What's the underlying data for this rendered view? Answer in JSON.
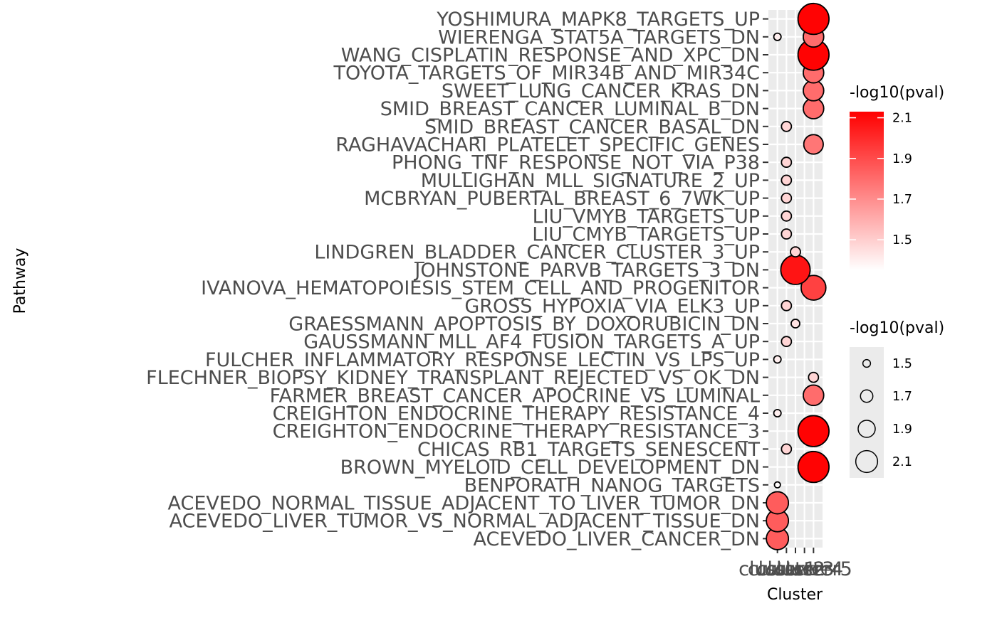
{
  "chart_data": {
    "type": "scatter",
    "xlabel": "Cluster",
    "ylabel": "Pathway",
    "categories_x": [
      "cluster1",
      "cluster2",
      "cluster3",
      "cluster4",
      "cluster5"
    ],
    "categories_y": [
      "ACEVEDO_LIVER_CANCER_DN",
      "ACEVEDO_LIVER_TUMOR_VS_NORMAL_ADJACENT_TISSUE_DN",
      "ACEVEDO_NORMAL_TISSUE_ADJACENT_TO_LIVER_TUMOR_DN",
      "BENPORATH_NANOG_TARGETS",
      "BROWN_MYELOID_CELL_DEVELOPMENT_DN",
      "CHICAS_RB1_TARGETS_SENESCENT",
      "CREIGHTON_ENDOCRINE_THERAPY_RESISTANCE_3",
      "CREIGHTON_ENDOCRINE_THERAPY_RESISTANCE_4",
      "FARMER_BREAST_CANCER_APOCRINE_VS_LUMINAL",
      "FLECHNER_BIOPSY_KIDNEY_TRANSPLANT_REJECTED_VS_OK_DN",
      "FULCHER_INFLAMMATORY_RESPONSE_LECTIN_VS_LPS_UP",
      "GAUSSMANN_MLL_AF4_FUSION_TARGETS_A_UP",
      "GRAESSMANN_APOPTOSIS_BY_DOXORUBICIN_DN",
      "GROSS_HYPOXIA_VIA_ELK3_UP",
      "IVANOVA_HEMATOPOIESIS_STEM_CELL_AND_PROGENITOR",
      "JOHNSTONE_PARVB_TARGETS_3_DN",
      "LINDGREN_BLADDER_CANCER_CLUSTER_3_UP",
      "LIU_CMYB_TARGETS_UP",
      "LIU_VMYB_TARGETS_UP",
      "MCBRYAN_PUBERTAL_BREAST_6_7WK_UP",
      "MULLIGHAN_MLL_SIGNATURE_2_UP",
      "PHONG_TNF_RESPONSE_NOT_VIA_P38",
      "RAGHAVACHARI_PLATELET_SPECIFIC_GENES",
      "SMID_BREAST_CANCER_BASAL_DN",
      "SMID_BREAST_CANCER_LUMINAL_B_DN",
      "SWEET_LUNG_CANCER_KRAS_DN",
      "TOYOTA_TARGETS_OF_MIR34B_AND_MIR34C",
      "WANG_CISPLATIN_RESPONSE_AND_XPC_DN",
      "WIERENGA_STAT5A_TARGETS_DN",
      "YOSHIMURA_MAPK8_TARGETS_UP"
    ],
    "points": [
      {
        "pathway": "ACEVEDO_LIVER_CANCER_DN",
        "cluster": "cluster1",
        "value": 1.85
      },
      {
        "pathway": "ACEVEDO_LIVER_TUMOR_VS_NORMAL_ADJACENT_TISSUE_DN",
        "cluster": "cluster1",
        "value": 1.85
      },
      {
        "pathway": "ACEVEDO_NORMAL_TISSUE_ADJACENT_TO_LIVER_TUMOR_DN",
        "cluster": "cluster1",
        "value": 1.85
      },
      {
        "pathway": "BENPORATH_NANOG_TARGETS",
        "cluster": "cluster1",
        "value": 1.36
      },
      {
        "pathway": "BROWN_MYELOID_CELL_DEVELOPMENT_DN",
        "cluster": "cluster5",
        "value": 2.12
      },
      {
        "pathway": "CHICAS_RB1_TARGETS_SENESCENT",
        "cluster": "cluster2",
        "value": 1.48
      },
      {
        "pathway": "CREIGHTON_ENDOCRINE_THERAPY_RESISTANCE_3",
        "cluster": "cluster5",
        "value": 2.12
      },
      {
        "pathway": "CREIGHTON_ENDOCRINE_THERAPY_RESISTANCE_4",
        "cluster": "cluster1",
        "value": 1.4
      },
      {
        "pathway": "FARMER_BREAST_CANCER_APOCRINE_VS_LUMINAL",
        "cluster": "cluster5",
        "value": 1.8
      },
      {
        "pathway": "FLECHNER_BIOPSY_KIDNEY_TRANSPLANT_REJECTED_VS_OK_DN",
        "cluster": "cluster5",
        "value": 1.48
      },
      {
        "pathway": "FULCHER_INFLAMMATORY_RESPONSE_LECTIN_VS_LPS_UP",
        "cluster": "cluster1",
        "value": 1.4
      },
      {
        "pathway": "GAUSSMANN_MLL_AF4_FUSION_TARGETS_A_UP",
        "cluster": "cluster2",
        "value": 1.48
      },
      {
        "pathway": "GRAESSMANN_APOPTOSIS_BY_DOXORUBICIN_DN",
        "cluster": "cluster3",
        "value": 1.44
      },
      {
        "pathway": "GROSS_HYPOXIA_VIA_ELK3_UP",
        "cluster": "cluster2",
        "value": 1.48
      },
      {
        "pathway": "IVANOVA_HEMATOPOIESIS_STEM_CELL_AND_PROGENITOR",
        "cluster": "cluster5",
        "value": 1.93
      },
      {
        "pathway": "JOHNSTONE_PARVB_TARGETS_3_DN",
        "cluster": "cluster3",
        "value": 2.07
      },
      {
        "pathway": "LINDGREN_BLADDER_CANCER_CLUSTER_3_UP",
        "cluster": "cluster3",
        "value": 1.48
      },
      {
        "pathway": "LIU_CMYB_TARGETS_UP",
        "cluster": "cluster2",
        "value": 1.48
      },
      {
        "pathway": "LIU_VMYB_TARGETS_UP",
        "cluster": "cluster2",
        "value": 1.48
      },
      {
        "pathway": "MCBRYAN_PUBERTAL_BREAST_6_7WK_UP",
        "cluster": "cluster2",
        "value": 1.48
      },
      {
        "pathway": "MULLIGHAN_MLL_SIGNATURE_2_UP",
        "cluster": "cluster2",
        "value": 1.48
      },
      {
        "pathway": "PHONG_TNF_RESPONSE_NOT_VIA_P38",
        "cluster": "cluster2",
        "value": 1.48
      },
      {
        "pathway": "RAGHAVACHARI_PLATELET_SPECIFIC_GENES",
        "cluster": "cluster5",
        "value": 1.77
      },
      {
        "pathway": "SMID_BREAST_CANCER_BASAL_DN",
        "cluster": "cluster2",
        "value": 1.48
      },
      {
        "pathway": "SMID_BREAST_CANCER_LUMINAL_B_DN",
        "cluster": "cluster5",
        "value": 1.8
      },
      {
        "pathway": "SWEET_LUNG_CANCER_KRAS_DN",
        "cluster": "cluster5",
        "value": 1.8
      },
      {
        "pathway": "TOYOTA_TARGETS_OF_MIR34B_AND_MIR34C",
        "cluster": "cluster5",
        "value": 1.8
      },
      {
        "pathway": "WANG_CISPLATIN_RESPONSE_AND_XPC_DN",
        "cluster": "cluster5",
        "value": 2.12
      },
      {
        "pathway": "WIERENGA_STAT5A_TARGETS_DN",
        "cluster": "cluster1",
        "value": 1.4
      },
      {
        "pathway": "WIERENGA_STAT5A_TARGETS_DN",
        "cluster": "cluster5",
        "value": 1.8
      },
      {
        "pathway": "YOSHIMURA_MAPK8_TARGETS_UP",
        "cluster": "cluster5",
        "value": 2.12
      }
    ],
    "color_scale": {
      "title": "-log10(pval)",
      "range": [
        1.35,
        2.13
      ],
      "low_color": "#ffffff",
      "high_color": "#ff0000",
      "breaks": [
        1.5,
        1.7,
        1.9,
        2.1
      ],
      "break_labels": [
        "1.5",
        "1.7",
        "1.9",
        "2.1"
      ]
    },
    "size_scale": {
      "title": "-log10(pval)",
      "range": [
        1.35,
        2.13
      ],
      "breaks": [
        1.5,
        1.7,
        1.9,
        2.1
      ],
      "break_labels": [
        "1.5",
        "1.7",
        "1.9",
        "2.1"
      ]
    },
    "panel_background": "#ebebeb",
    "grid": true,
    "legend_position": "right"
  }
}
